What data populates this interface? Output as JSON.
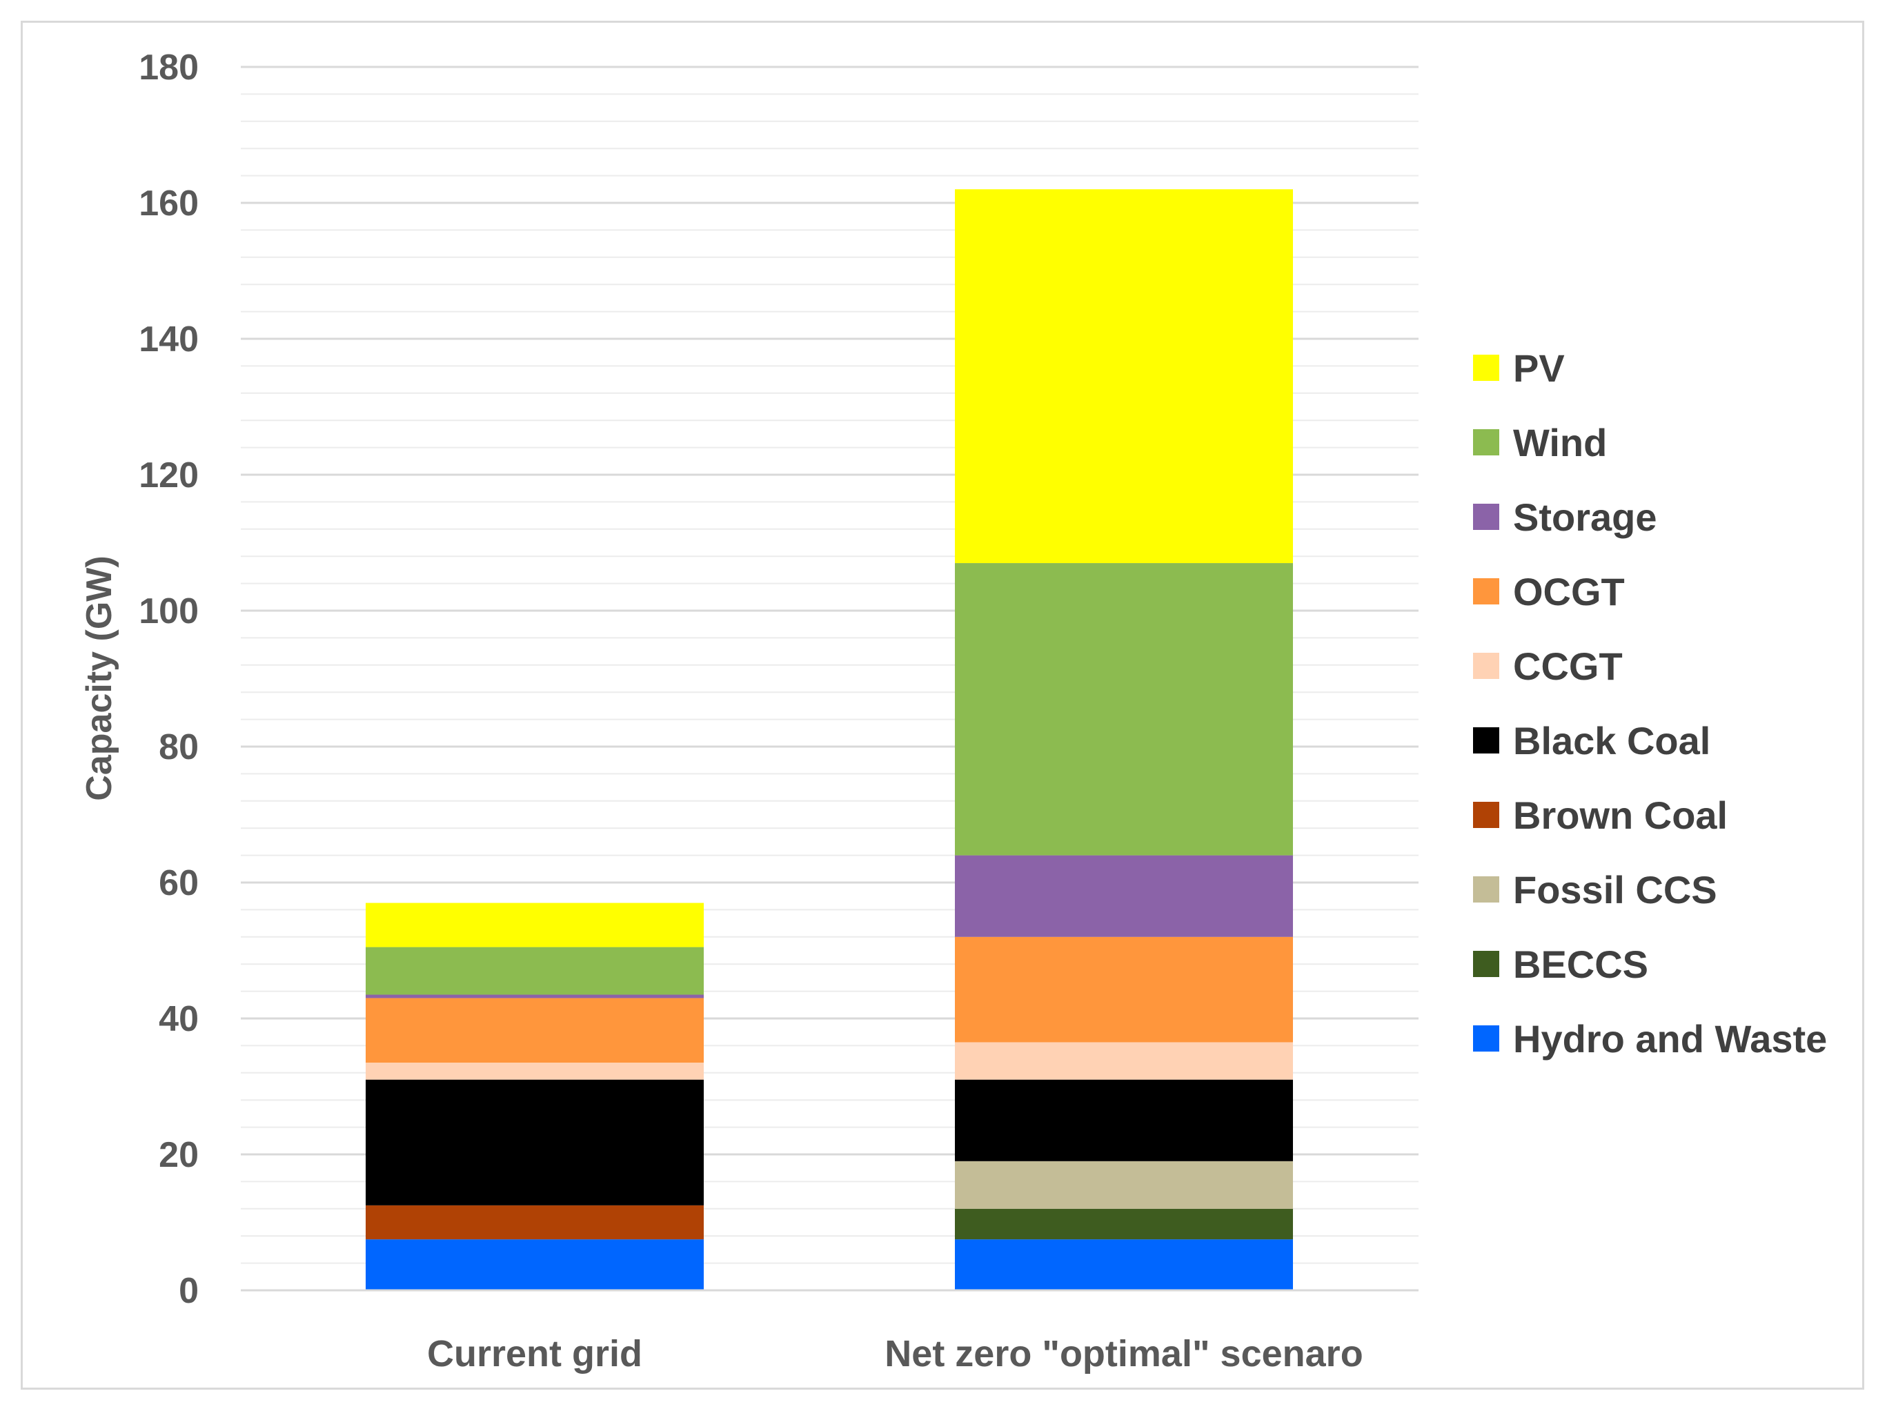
{
  "chart_data": {
    "type": "bar",
    "stacked": true,
    "title": "",
    "xlabel": "",
    "ylabel": "Capacity (GW)",
    "ylim": [
      0,
      180
    ],
    "yticks": [
      0,
      20,
      40,
      60,
      80,
      100,
      120,
      140,
      160,
      180
    ],
    "grid": true,
    "legend_position": "right",
    "categories": [
      "Current grid",
      "Net zero \"optimal\" scenaro"
    ],
    "series": [
      {
        "name": "Hydro and Waste",
        "color": "#0066ff",
        "values": [
          7.5,
          7.5
        ]
      },
      {
        "name": "BECCS",
        "color": "#3e5c1f",
        "values": [
          0,
          4.5
        ]
      },
      {
        "name": "Fossil CCS",
        "color": "#c4bd97",
        "values": [
          0,
          7
        ]
      },
      {
        "name": "Brown Coal",
        "color": "#b04205",
        "values": [
          5,
          0
        ]
      },
      {
        "name": "Black Coal",
        "color": "#000000",
        "values": [
          18.5,
          12
        ]
      },
      {
        "name": "CCGT",
        "color": "#ffd2b4",
        "values": [
          2.5,
          5.5
        ]
      },
      {
        "name": "OCGT",
        "color": "#ff963c",
        "values": [
          9.5,
          15.5
        ]
      },
      {
        "name": "Storage",
        "color": "#8b63a8",
        "values": [
          0.5,
          12
        ]
      },
      {
        "name": "Wind",
        "color": "#8cbb50",
        "values": [
          7,
          43
        ]
      },
      {
        "name": "PV",
        "color": "#ffff00",
        "values": [
          6.5,
          55
        ]
      }
    ]
  }
}
